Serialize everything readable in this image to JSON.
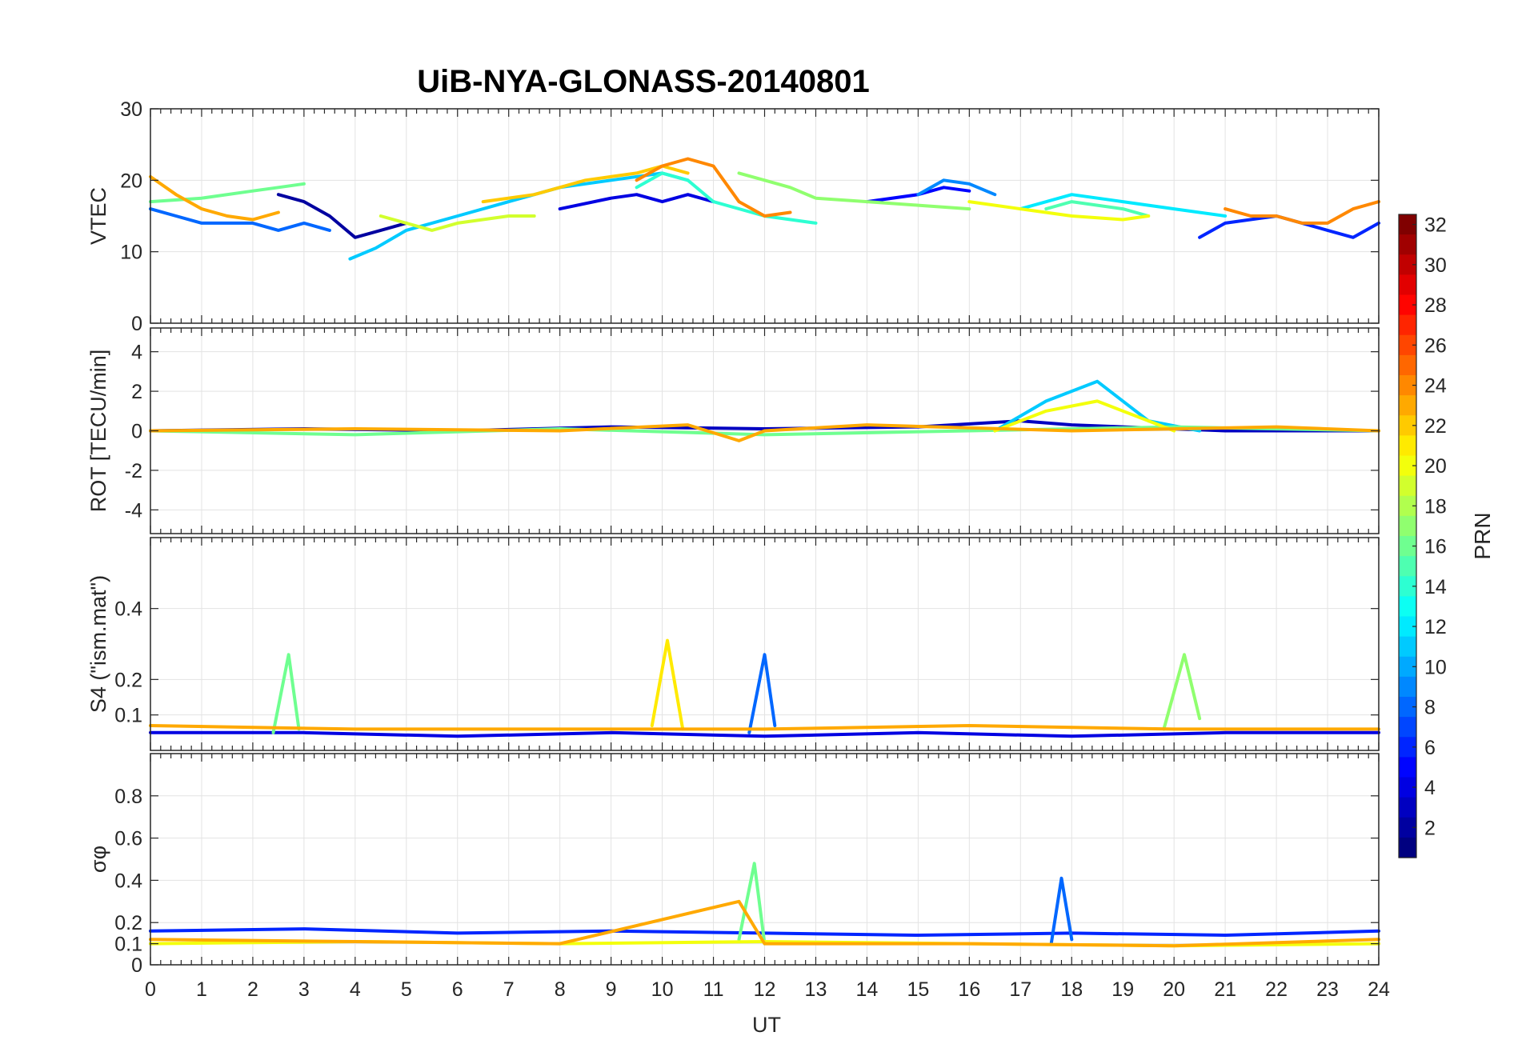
{
  "chart_data": {
    "type": "line",
    "title": "UiB-NYA-GLONASS-20140801",
    "xlabel": "UT",
    "xlim": [
      0,
      24
    ],
    "xticks": [
      0,
      1,
      2,
      3,
      4,
      5,
      6,
      7,
      8,
      9,
      10,
      11,
      12,
      13,
      14,
      15,
      16,
      17,
      18,
      19,
      20,
      21,
      22,
      23,
      24
    ],
    "grid": true,
    "colorbar": {
      "label": "PRN",
      "range": [
        1,
        32
      ],
      "colormap": "jet",
      "ticks": [
        2,
        4,
        6,
        8,
        10,
        12,
        14,
        16,
        18,
        20,
        22,
        24,
        26,
        28,
        30,
        32
      ]
    },
    "panels": [
      {
        "id": "vtec",
        "ylabel": "VTEC",
        "ylim": [
          0,
          30
        ],
        "yticks": [
          0,
          10,
          20,
          30
        ],
        "series": [
          {
            "prn": 2,
            "points": [
              [
                2.5,
                18
              ],
              [
                3,
                17
              ],
              [
                3.5,
                15
              ],
              [
                4,
                12
              ],
              [
                4.5,
                13
              ],
              [
                5,
                14
              ]
            ]
          },
          {
            "prn": 4,
            "points": [
              [
                8,
                16
              ],
              [
                9,
                17.5
              ],
              [
                9.5,
                18
              ],
              [
                10,
                17
              ],
              [
                10.5,
                18
              ],
              [
                11,
                17
              ]
            ]
          },
          {
            "prn": 5,
            "points": [
              [
                14,
                17
              ],
              [
                15,
                18
              ],
              [
                15.5,
                19
              ],
              [
                16,
                18.5
              ]
            ]
          },
          {
            "prn": 6,
            "points": [
              [
                20.5,
                12
              ],
              [
                21,
                14
              ],
              [
                22,
                15
              ],
              [
                22.5,
                14
              ],
              [
                23,
                13
              ],
              [
                23.5,
                12
              ],
              [
                24,
                14
              ]
            ]
          },
          {
            "prn": 8,
            "points": [
              [
                0,
                16
              ],
              [
                0.5,
                15
              ],
              [
                1,
                14
              ],
              [
                2,
                14
              ],
              [
                2.5,
                13
              ],
              [
                3,
                14
              ],
              [
                3.5,
                13
              ]
            ]
          },
          {
            "prn": 9,
            "points": [
              [
                15,
                18
              ],
              [
                15.5,
                20
              ],
              [
                16,
                19.5
              ],
              [
                16.5,
                18
              ]
            ]
          },
          {
            "prn": 11,
            "points": [
              [
                3.9,
                9
              ],
              [
                4.4,
                10.5
              ],
              [
                5,
                13
              ],
              [
                6,
                15
              ],
              [
                7,
                17
              ],
              [
                8,
                19
              ],
              [
                9,
                20
              ],
              [
                10,
                21
              ],
              [
                10.5,
                20
              ]
            ]
          },
          {
            "prn": 12,
            "points": [
              [
                17,
                16
              ],
              [
                18,
                18
              ],
              [
                19,
                17
              ],
              [
                20,
                16
              ],
              [
                21,
                15
              ]
            ]
          },
          {
            "prn": 14,
            "points": [
              [
                9.5,
                19
              ],
              [
                10,
                21
              ],
              [
                10.5,
                20
              ],
              [
                11,
                17
              ],
              [
                12,
                15
              ],
              [
                13,
                14
              ]
            ]
          },
          {
            "prn": 15,
            "points": [
              [
                17.5,
                16
              ],
              [
                18,
                17
              ],
              [
                19,
                16
              ],
              [
                19.5,
                15
              ]
            ]
          },
          {
            "prn": 16,
            "points": [
              [
                0,
                17
              ],
              [
                1,
                17.5
              ],
              [
                2,
                18.5
              ],
              [
                2.5,
                19
              ],
              [
                3,
                19.5
              ]
            ]
          },
          {
            "prn": 17,
            "points": [
              [
                11.5,
                21
              ],
              [
                12,
                20
              ],
              [
                12.5,
                19
              ],
              [
                13,
                17.5
              ],
              [
                14,
                17
              ],
              [
                15,
                16.5
              ],
              [
                16,
                16
              ]
            ]
          },
          {
            "prn": 19,
            "points": [
              [
                4.5,
                15
              ],
              [
                5,
                14
              ],
              [
                5.5,
                13
              ],
              [
                6,
                14
              ],
              [
                7,
                15
              ],
              [
                7.5,
                15
              ]
            ]
          },
          {
            "prn": 20,
            "points": [
              [
                16,
                17
              ],
              [
                17,
                16
              ],
              [
                18,
                15
              ],
              [
                19,
                14.5
              ],
              [
                19.5,
                15
              ]
            ]
          },
          {
            "prn": 22,
            "points": [
              [
                6.5,
                17
              ],
              [
                7.5,
                18
              ],
              [
                8.5,
                20
              ],
              [
                9.5,
                21
              ],
              [
                10,
                22
              ],
              [
                10.5,
                21
              ]
            ]
          },
          {
            "prn": 23,
            "points": [
              [
                0,
                20.5
              ],
              [
                0.5,
                18
              ],
              [
                1,
                16
              ],
              [
                1.5,
                15
              ],
              [
                2,
                14.5
              ],
              [
                2.5,
                15.5
              ]
            ]
          },
          {
            "prn": 24,
            "points": [
              [
                9.5,
                20
              ],
              [
                10,
                22
              ],
              [
                10.5,
                23
              ],
              [
                11,
                22
              ],
              [
                11.5,
                17
              ],
              [
                12,
                15
              ],
              [
                12.5,
                15.5
              ]
            ]
          },
          {
            "prn": 24,
            "points": [
              [
                21,
                16
              ],
              [
                21.5,
                15
              ],
              [
                22,
                15
              ],
              [
                22.5,
                14
              ],
              [
                23,
                14
              ],
              [
                23.5,
                16
              ],
              [
                24,
                17
              ]
            ]
          }
        ]
      },
      {
        "id": "rot",
        "ylabel": "ROT [TECU/min]",
        "ylim": [
          -5.2,
          5.2
        ],
        "yticks": [
          -4,
          -2,
          0,
          2,
          4
        ],
        "series": [
          {
            "prn": 3,
            "points": [
              [
                0,
                0
              ],
              [
                3,
                0.1
              ],
              [
                6,
                0
              ],
              [
                9,
                0.2
              ],
              [
                12,
                0.1
              ],
              [
                15,
                0.2
              ],
              [
                17,
                0.5
              ],
              [
                18,
                0.3
              ],
              [
                21,
                0
              ],
              [
                24,
                0
              ]
            ]
          },
          {
            "prn": 11,
            "points": [
              [
                16.5,
                0
              ],
              [
                17.5,
                1.5
              ],
              [
                18.5,
                2.5
              ],
              [
                19.5,
                0.5
              ],
              [
                20.5,
                0
              ]
            ]
          },
          {
            "prn": 16,
            "points": [
              [
                0,
                0
              ],
              [
                4,
                -0.2
              ],
              [
                8,
                0.1
              ],
              [
                12,
                -0.2
              ],
              [
                16,
                0
              ],
              [
                20,
                0.2
              ],
              [
                24,
                0
              ]
            ]
          },
          {
            "prn": 20,
            "points": [
              [
                16.5,
                0
              ],
              [
                17.5,
                1
              ],
              [
                18.5,
                1.5
              ],
              [
                19.5,
                0.5
              ],
              [
                20,
                0
              ]
            ]
          },
          {
            "prn": 23,
            "points": [
              [
                0,
                0
              ],
              [
                4,
                0.1
              ],
              [
                8,
                0
              ],
              [
                10.5,
                0.3
              ],
              [
                11.5,
                -0.5
              ],
              [
                12,
                0
              ],
              [
                14,
                0.3
              ],
              [
                18,
                0
              ],
              [
                22,
                0.2
              ],
              [
                24,
                0
              ]
            ]
          }
        ]
      },
      {
        "id": "s4",
        "ylabel": "S4 (\"ism.mat\")",
        "ylim": [
          0,
          0.6
        ],
        "yticks": [
          0.1,
          0.2,
          0.4
        ],
        "series": [
          {
            "prn": 4,
            "points": [
              [
                0,
                0.05
              ],
              [
                3,
                0.05
              ],
              [
                6,
                0.04
              ],
              [
                9,
                0.05
              ],
              [
                12,
                0.04
              ],
              [
                15,
                0.05
              ],
              [
                18,
                0.04
              ],
              [
                21,
                0.05
              ],
              [
                24,
                0.05
              ]
            ]
          },
          {
            "prn": 8,
            "points": [
              [
                11.7,
                0.05
              ],
              [
                12,
                0.27
              ],
              [
                12.2,
                0.07
              ]
            ]
          },
          {
            "prn": 16,
            "points": [
              [
                2.4,
                0.05
              ],
              [
                2.7,
                0.27
              ],
              [
                2.9,
                0.06
              ]
            ]
          },
          {
            "prn": 17,
            "points": [
              [
                19.8,
                0.06
              ],
              [
                20.2,
                0.27
              ],
              [
                20.5,
                0.09
              ]
            ]
          },
          {
            "prn": 21,
            "points": [
              [
                9.8,
                0.07
              ],
              [
                10.1,
                0.31
              ],
              [
                10.4,
                0.06
              ]
            ]
          },
          {
            "prn": 23,
            "points": [
              [
                0,
                0.07
              ],
              [
                4,
                0.06
              ],
              [
                8,
                0.06
              ],
              [
                12,
                0.06
              ],
              [
                16,
                0.07
              ],
              [
                20,
                0.06
              ],
              [
                24,
                0.06
              ]
            ]
          }
        ]
      },
      {
        "id": "sigma",
        "ylabel": "σφ",
        "ylim": [
          0,
          1
        ],
        "yticks": [
          0,
          0.1,
          0.2,
          0.4,
          0.6,
          0.8
        ],
        "series": [
          {
            "prn": 6,
            "points": [
              [
                0,
                0.16
              ],
              [
                3,
                0.17
              ],
              [
                6,
                0.15
              ],
              [
                9,
                0.16
              ],
              [
                12,
                0.15
              ],
              [
                15,
                0.14
              ],
              [
                18,
                0.15
              ],
              [
                21,
                0.14
              ],
              [
                24,
                0.16
              ]
            ]
          },
          {
            "prn": 8,
            "points": [
              [
                17.6,
                0.1
              ],
              [
                17.8,
                0.41
              ],
              [
                18,
                0.12
              ]
            ]
          },
          {
            "prn": 16,
            "points": [
              [
                11.5,
                0.12
              ],
              [
                11.8,
                0.48
              ],
              [
                12,
                0.1
              ]
            ]
          },
          {
            "prn": 20,
            "points": [
              [
                0,
                0.1
              ],
              [
                4,
                0.11
              ],
              [
                8,
                0.1
              ],
              [
                12,
                0.11
              ],
              [
                16,
                0.1
              ],
              [
                20,
                0.09
              ],
              [
                24,
                0.1
              ]
            ]
          },
          {
            "prn": 23,
            "points": [
              [
                0,
                0.12
              ],
              [
                4,
                0.11
              ],
              [
                8,
                0.1
              ],
              [
                11.5,
                0.3
              ],
              [
                12,
                0.1
              ],
              [
                16,
                0.1
              ],
              [
                20,
                0.09
              ],
              [
                24,
                0.12
              ]
            ]
          }
        ]
      }
    ]
  }
}
